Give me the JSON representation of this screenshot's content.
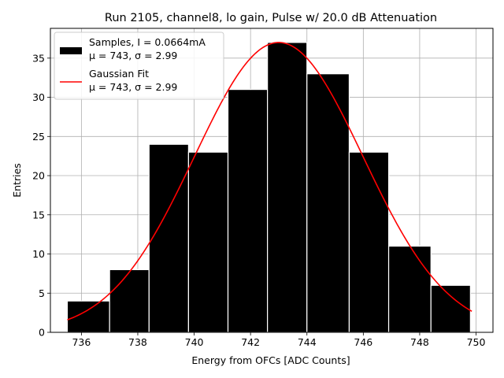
{
  "chart_data": {
    "type": "bar",
    "title": "Run 2105, channel8, lo gain, Pulse w/ 20.0 dB Attenuation",
    "xlabel": "Energy from OFCs [ADC Counts]",
    "ylabel": "Entries",
    "xlim": [
      734.9,
      750.6
    ],
    "ylim": [
      0,
      38.8
    ],
    "grid": true,
    "bins": [
      {
        "x0": 735.5,
        "x1": 737.0,
        "count": 4
      },
      {
        "x0": 737.0,
        "x1": 738.4,
        "count": 8
      },
      {
        "x0": 738.4,
        "x1": 739.8,
        "count": 24
      },
      {
        "x0": 739.8,
        "x1": 741.2,
        "count": 23
      },
      {
        "x0": 741.2,
        "x1": 742.6,
        "count": 31
      },
      {
        "x0": 742.6,
        "x1": 744.0,
        "count": 37
      },
      {
        "x0": 744.0,
        "x1": 745.5,
        "count": 33
      },
      {
        "x0": 745.5,
        "x1": 746.9,
        "count": 23
      },
      {
        "x0": 746.9,
        "x1": 748.4,
        "count": 11
      },
      {
        "x0": 748.4,
        "x1": 749.8,
        "count": 6
      }
    ],
    "fit": {
      "name": "Gaussian Fit",
      "mu": 743.0,
      "sigma": 2.99,
      "amplitude": 37.0,
      "x_start": 735.5,
      "x_end": 749.85,
      "color": "#ff0000"
    },
    "x_ticks": [
      736,
      738,
      740,
      742,
      744,
      746,
      748,
      750
    ],
    "y_ticks": [
      0,
      5,
      10,
      15,
      20,
      25,
      30,
      35
    ],
    "legend": {
      "position": "upper-left",
      "entries": [
        {
          "kind": "bar",
          "line1": "Samples, I = 0.0664mA",
          "line2": "μ = 743, σ = 2.99",
          "color": "#000000"
        },
        {
          "kind": "line",
          "line1": "Gaussian Fit",
          "line2": "μ = 743, σ = 2.99",
          "color": "#ff0000"
        }
      ]
    }
  }
}
